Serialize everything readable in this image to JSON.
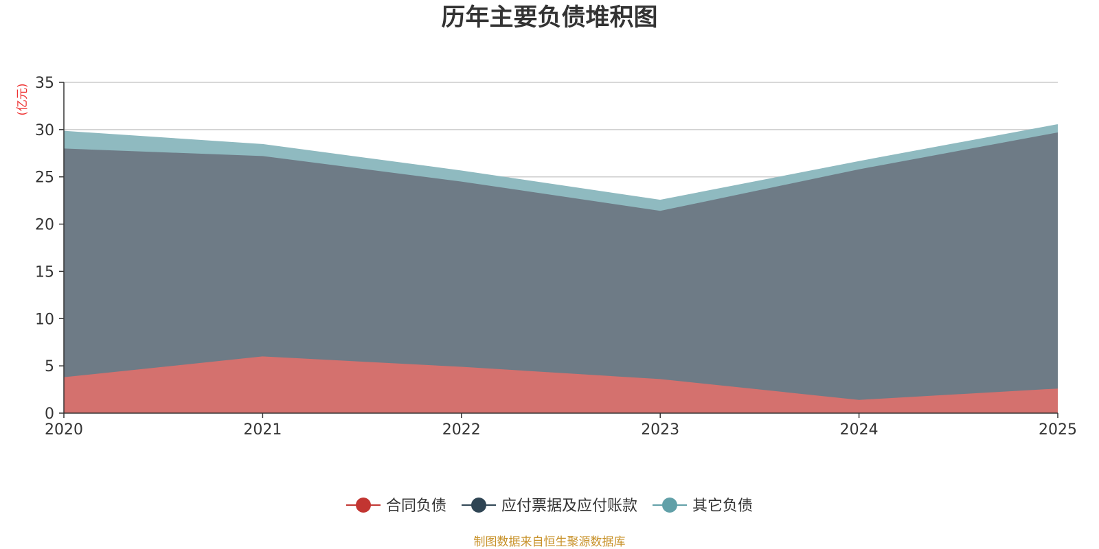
{
  "chart_data": {
    "type": "area",
    "stacked": true,
    "title": "历年主要负债堆积图",
    "ylabel": "(亿元)",
    "ylim": [
      0,
      35
    ],
    "yticks": [
      0,
      5,
      10,
      15,
      20,
      25,
      30,
      35
    ],
    "x": [
      "2020",
      "2021",
      "2022",
      "2023",
      "2024",
      "2025"
    ],
    "grid": true,
    "legend_position": "bottom",
    "series": [
      {
        "name": "合同负债",
        "color": "#c23531",
        "fill": "#d4716e",
        "values": [
          3.8,
          6.0,
          4.9,
          3.6,
          1.4,
          2.6
        ]
      },
      {
        "name": "应付票据及应付账款",
        "color": "#2f4554",
        "fill": "#6e7b86",
        "values": [
          24.2,
          21.2,
          19.6,
          17.8,
          24.4,
          27.1
        ]
      },
      {
        "name": "其它负债",
        "color": "#61a0a8",
        "fill": "#8fbac0",
        "values": [
          1.8,
          1.2,
          1.1,
          1.1,
          0.8,
          0.8
        ]
      }
    ]
  },
  "footer": {
    "source": "制图数据来自恒生聚源数据库"
  }
}
